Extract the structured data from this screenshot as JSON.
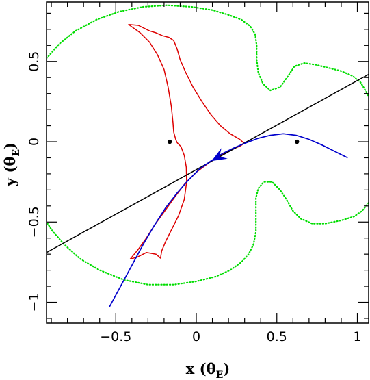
{
  "chart_data": {
    "type": "line",
    "title": "",
    "xlabel": "x (θ",
    "xlabel_sub": "E",
    "xlabel_close": ")",
    "ylabel": "y (θ",
    "ylabel_sub": "E",
    "ylabel_close": ")",
    "xlim": [
      -0.93,
      1.07
    ],
    "ylim": [
      -1.13,
      0.87
    ],
    "x_ticks": [
      -0.5,
      0,
      0.5,
      1
    ],
    "x_tick_labels": [
      "−0.5",
      "0",
      "0.5",
      "1"
    ],
    "y_ticks": [
      -1,
      -0.5,
      0,
      0.5
    ],
    "y_tick_labels": [
      "−1",
      "−0.5",
      "0",
      "0.5"
    ],
    "grid": false,
    "colors": {
      "critical_curve": "#00dd00",
      "caustic": "#dd0000",
      "trajectory": "#0000cc",
      "source_line": "#000000",
      "lens": "#000000"
    },
    "lens_positions": [
      {
        "x": -0.165,
        "y": 0.0
      },
      {
        "x": 0.625,
        "y": 0.0
      }
    ],
    "straight_line": {
      "points": [
        [
          -0.93,
          -0.69
        ],
        [
          1.07,
          0.42
        ]
      ]
    },
    "caustic_outline": [
      [
        -0.12,
        -0.005
      ],
      [
        -0.095,
        -0.03
      ],
      [
        -0.075,
        -0.085
      ],
      [
        -0.062,
        -0.16
      ],
      [
        -0.06,
        -0.25
      ],
      [
        -0.075,
        -0.36
      ],
      [
        -0.11,
        -0.46
      ],
      [
        -0.155,
        -0.55
      ],
      [
        -0.19,
        -0.62
      ],
      [
        -0.215,
        -0.68
      ],
      [
        -0.222,
        -0.725
      ],
      [
        -0.25,
        -0.7
      ],
      [
        -0.31,
        -0.69
      ],
      [
        -0.37,
        -0.72
      ],
      [
        -0.41,
        -0.73
      ],
      [
        -0.36,
        -0.67
      ],
      [
        -0.31,
        -0.6
      ],
      [
        -0.26,
        -0.52
      ],
      [
        -0.195,
        -0.43
      ],
      [
        -0.13,
        -0.34
      ],
      [
        -0.07,
        -0.26
      ],
      [
        0.0,
        -0.19
      ],
      [
        0.08,
        -0.13
      ],
      [
        0.16,
        -0.08
      ],
      [
        0.23,
        -0.045
      ],
      [
        0.275,
        -0.025
      ],
      [
        0.298,
        -0.01
      ],
      [
        0.27,
        0.015
      ],
      [
        0.21,
        0.05
      ],
      [
        0.15,
        0.1
      ],
      [
        0.09,
        0.17
      ],
      [
        0.035,
        0.25
      ],
      [
        -0.02,
        0.34
      ],
      [
        -0.065,
        0.43
      ],
      [
        -0.1,
        0.51
      ],
      [
        -0.12,
        0.58
      ],
      [
        -0.14,
        0.63
      ],
      [
        -0.17,
        0.65
      ],
      [
        -0.21,
        0.66
      ],
      [
        -0.255,
        0.68
      ],
      [
        -0.29,
        0.69
      ],
      [
        -0.36,
        0.725
      ],
      [
        -0.42,
        0.73
      ],
      [
        -0.35,
        0.68
      ],
      [
        -0.29,
        0.62
      ],
      [
        -0.24,
        0.54
      ],
      [
        -0.2,
        0.45
      ],
      [
        -0.175,
        0.34
      ],
      [
        -0.155,
        0.22
      ],
      [
        -0.145,
        0.12
      ],
      [
        -0.14,
        0.06
      ],
      [
        -0.128,
        0.015
      ],
      [
        -0.12,
        -0.005
      ]
    ],
    "critical_left": [
      [
        -0.93,
        0.52
      ],
      [
        -0.85,
        0.61
      ],
      [
        -0.75,
        0.69
      ],
      [
        -0.62,
        0.76
      ],
      [
        -0.48,
        0.81
      ],
      [
        -0.33,
        0.84
      ],
      [
        -0.18,
        0.85
      ],
      [
        -0.03,
        0.84
      ],
      [
        0.1,
        0.82
      ],
      [
        0.2,
        0.79
      ],
      [
        0.28,
        0.76
      ],
      [
        0.335,
        0.72
      ],
      [
        0.365,
        0.67
      ],
      [
        0.375,
        0.6
      ],
      [
        0.375,
        0.51
      ],
      [
        0.385,
        0.43
      ],
      [
        0.415,
        0.36
      ],
      [
        0.46,
        0.32
      ],
      [
        0.52,
        0.34
      ],
      [
        0.57,
        0.41
      ],
      [
        0.61,
        0.47
      ],
      [
        0.67,
        0.49
      ],
      [
        0.74,
        0.48
      ],
      [
        0.82,
        0.46
      ],
      [
        0.9,
        0.44
      ],
      [
        0.97,
        0.41
      ],
      [
        1.02,
        0.37
      ],
      [
        1.05,
        0.32
      ],
      [
        1.07,
        0.28
      ]
    ],
    "critical_right": [
      [
        1.07,
        -0.38
      ],
      [
        1.03,
        -0.43
      ],
      [
        0.98,
        -0.465
      ],
      [
        0.9,
        -0.49
      ],
      [
        0.8,
        -0.51
      ],
      [
        0.72,
        -0.51
      ],
      [
        0.65,
        -0.48
      ],
      [
        0.6,
        -0.43
      ],
      [
        0.56,
        -0.36
      ],
      [
        0.52,
        -0.3
      ],
      [
        0.47,
        -0.25
      ],
      [
        0.42,
        -0.25
      ],
      [
        0.385,
        -0.29
      ],
      [
        0.37,
        -0.35
      ],
      [
        0.37,
        -0.45
      ],
      [
        0.37,
        -0.56
      ],
      [
        0.355,
        -0.64
      ],
      [
        0.325,
        -0.7
      ],
      [
        0.28,
        -0.75
      ],
      [
        0.21,
        -0.8
      ],
      [
        0.12,
        -0.84
      ],
      [
        0.0,
        -0.87
      ],
      [
        -0.14,
        -0.89
      ],
      [
        -0.3,
        -0.89
      ],
      [
        -0.45,
        -0.86
      ],
      [
        -0.6,
        -0.8
      ],
      [
        -0.72,
        -0.73
      ],
      [
        -0.82,
        -0.64
      ],
      [
        -0.89,
        -0.56
      ],
      [
        -0.93,
        -0.5
      ]
    ],
    "trajectory": [
      [
        -0.54,
        -1.03
      ],
      [
        -0.47,
        -0.9
      ],
      [
        -0.4,
        -0.77
      ],
      [
        -0.33,
        -0.64
      ],
      [
        -0.26,
        -0.52
      ],
      [
        -0.19,
        -0.41
      ],
      [
        -0.12,
        -0.32
      ],
      [
        -0.05,
        -0.24
      ],
      [
        0.02,
        -0.17
      ],
      [
        0.09,
        -0.12
      ],
      [
        0.16,
        -0.075
      ],
      [
        0.23,
        -0.04
      ],
      [
        0.3,
        -0.01
      ],
      [
        0.38,
        0.02
      ],
      [
        0.46,
        0.04
      ],
      [
        0.54,
        0.05
      ],
      [
        0.62,
        0.04
      ],
      [
        0.7,
        0.015
      ],
      [
        0.78,
        -0.02
      ],
      [
        0.86,
        -0.06
      ],
      [
        0.94,
        -0.1
      ]
    ],
    "trajectory_arrow": {
      "tip": [
        0.095,
        -0.12
      ],
      "from": [
        0.18,
        -0.07
      ]
    }
  }
}
